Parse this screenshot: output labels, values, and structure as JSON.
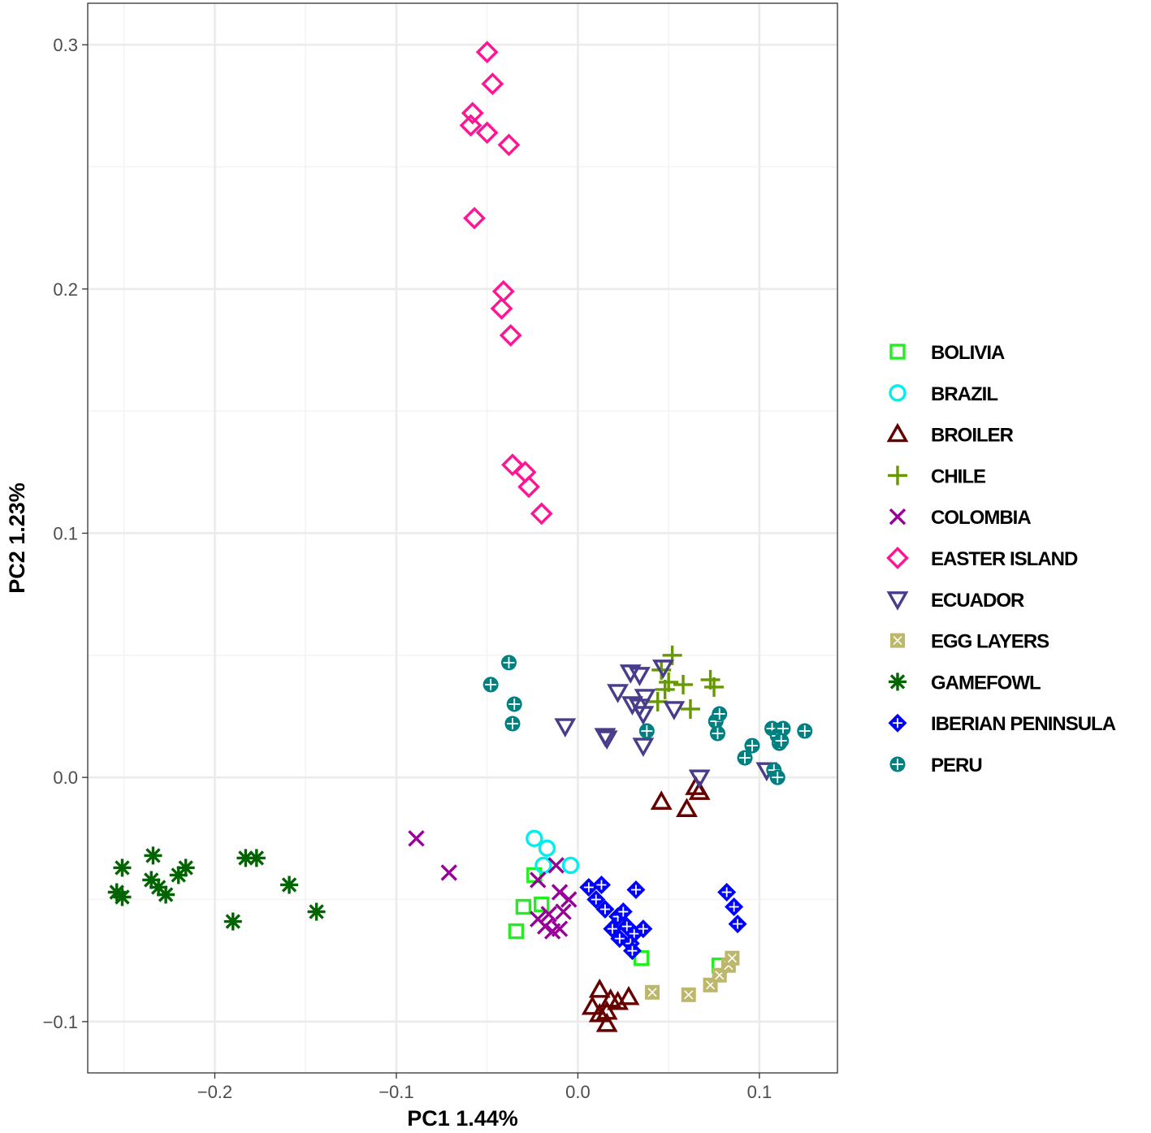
{
  "chart_data": {
    "type": "scatter",
    "xlabel": "PC1 1.44%",
    "ylabel": "PC2 1.23%",
    "xlim": [
      -0.27,
      0.143
    ],
    "ylim": [
      -0.121,
      0.317
    ],
    "x_ticks": [
      -0.2,
      -0.1,
      0.0,
      0.1
    ],
    "x_tick_labels": [
      "−0.2",
      "−0.1",
      "0.0",
      "0.1"
    ],
    "y_ticks": [
      -0.1,
      0.0,
      0.1,
      0.2,
      0.3
    ],
    "y_tick_labels": [
      "−0.1",
      "0.0",
      "0.1",
      "0.2",
      "0.3"
    ],
    "grid": true,
    "legend_position": "right",
    "series": [
      {
        "name": "BOLIVIA",
        "color": "#22ee22",
        "shape": "square",
        "points": [
          [
            -0.034,
            -0.063
          ],
          [
            -0.03,
            -0.053
          ],
          [
            -0.024,
            -0.04
          ],
          [
            -0.02,
            -0.052
          ],
          [
            0.035,
            -0.074
          ],
          [
            0.078,
            -0.077
          ]
        ]
      },
      {
        "name": "BRAZIL",
        "color": "#00eeee",
        "shape": "circle",
        "points": [
          [
            -0.024,
            -0.025
          ],
          [
            -0.017,
            -0.029
          ],
          [
            -0.019,
            -0.036
          ],
          [
            -0.004,
            -0.036
          ]
        ]
      },
      {
        "name": "BROILER",
        "color": "#660000",
        "shape": "triangle",
        "points": [
          [
            0.046,
            -0.01
          ],
          [
            0.06,
            -0.013
          ],
          [
            0.065,
            -0.004
          ],
          [
            0.067,
            -0.006
          ],
          [
            0.012,
            -0.087
          ],
          [
            0.008,
            -0.094
          ],
          [
            0.018,
            -0.091
          ],
          [
            0.028,
            -0.09
          ],
          [
            0.022,
            -0.092
          ],
          [
            0.012,
            -0.097
          ],
          [
            0.016,
            -0.101
          ],
          [
            0.016,
            -0.096
          ]
        ]
      },
      {
        "name": "CHILE",
        "color": "#669900",
        "shape": "plus",
        "points": [
          [
            0.052,
            0.05
          ],
          [
            0.046,
            0.044
          ],
          [
            0.05,
            0.039
          ],
          [
            0.058,
            0.038
          ],
          [
            0.048,
            0.036
          ],
          [
            0.073,
            0.04
          ],
          [
            0.075,
            0.037
          ],
          [
            0.044,
            0.031
          ],
          [
            0.062,
            0.028
          ]
        ]
      },
      {
        "name": "COLOMBIA",
        "color": "#990099",
        "shape": "cross",
        "points": [
          [
            -0.089,
            -0.025
          ],
          [
            -0.071,
            -0.039
          ],
          [
            -0.022,
            -0.042
          ],
          [
            -0.012,
            -0.036
          ],
          [
            -0.01,
            -0.047
          ],
          [
            -0.005,
            -0.05
          ],
          [
            -0.016,
            -0.056
          ],
          [
            -0.022,
            -0.058
          ],
          [
            -0.018,
            -0.061
          ],
          [
            -0.01,
            -0.062
          ],
          [
            -0.014,
            -0.063
          ],
          [
            -0.008,
            -0.055
          ]
        ]
      },
      {
        "name": "EASTER ISLAND",
        "color": "#ff1493",
        "shape": "diamond",
        "points": [
          [
            -0.05,
            0.297
          ],
          [
            -0.047,
            0.284
          ],
          [
            -0.058,
            0.272
          ],
          [
            -0.059,
            0.267
          ],
          [
            -0.05,
            0.264
          ],
          [
            -0.038,
            0.259
          ],
          [
            -0.057,
            0.229
          ],
          [
            -0.041,
            0.199
          ],
          [
            -0.042,
            0.192
          ],
          [
            -0.037,
            0.181
          ],
          [
            -0.036,
            0.128
          ],
          [
            -0.029,
            0.125
          ],
          [
            -0.027,
            0.119
          ],
          [
            -0.02,
            0.108
          ]
        ]
      },
      {
        "name": "ECUADOR",
        "color": "#483d8b",
        "shape": "triangle-down",
        "points": [
          [
            -0.007,
            0.021
          ],
          [
            0.015,
            0.017
          ],
          [
            0.016,
            0.016
          ],
          [
            0.022,
            0.035
          ],
          [
            0.029,
            0.043
          ],
          [
            0.034,
            0.042
          ],
          [
            0.047,
            0.045
          ],
          [
            0.037,
            0.033
          ],
          [
            0.03,
            0.03
          ],
          [
            0.034,
            0.029
          ],
          [
            0.036,
            0.026
          ],
          [
            0.053,
            0.028
          ],
          [
            0.036,
            0.013
          ],
          [
            0.067,
            -0.0
          ],
          [
            0.104,
            0.003
          ]
        ]
      },
      {
        "name": "EGG LAYERS",
        "color": "#bdb76b",
        "shape": "square-cross",
        "points": [
          [
            0.041,
            -0.088
          ],
          [
            0.061,
            -0.089
          ],
          [
            0.073,
            -0.085
          ],
          [
            0.078,
            -0.081
          ],
          [
            0.083,
            -0.077
          ],
          [
            0.085,
            -0.074
          ]
        ]
      },
      {
        "name": "GAMEFOWL",
        "color": "#006400",
        "shape": "asterisk",
        "points": [
          [
            -0.251,
            -0.037
          ],
          [
            -0.254,
            -0.047
          ],
          [
            -0.251,
            -0.049
          ],
          [
            -0.234,
            -0.032
          ],
          [
            -0.235,
            -0.042
          ],
          [
            -0.231,
            -0.045
          ],
          [
            -0.227,
            -0.048
          ],
          [
            -0.22,
            -0.04
          ],
          [
            -0.216,
            -0.037
          ],
          [
            -0.183,
            -0.033
          ],
          [
            -0.177,
            -0.033
          ],
          [
            -0.159,
            -0.044
          ],
          [
            -0.19,
            -0.059
          ],
          [
            -0.144,
            -0.055
          ]
        ]
      },
      {
        "name": "IBERIAN PENINSULA",
        "color": "#0000ff",
        "shape": "diamond-plus",
        "points": [
          [
            0.006,
            -0.045
          ],
          [
            0.013,
            -0.044
          ],
          [
            0.01,
            -0.05
          ],
          [
            0.015,
            -0.054
          ],
          [
            0.022,
            -0.057
          ],
          [
            0.025,
            -0.055
          ],
          [
            0.019,
            -0.062
          ],
          [
            0.027,
            -0.061
          ],
          [
            0.031,
            -0.064
          ],
          [
            0.036,
            -0.062
          ],
          [
            0.023,
            -0.066
          ],
          [
            0.029,
            -0.068
          ],
          [
            0.03,
            -0.071
          ],
          [
            0.032,
            -0.046
          ],
          [
            0.082,
            -0.047
          ],
          [
            0.086,
            -0.053
          ],
          [
            0.088,
            -0.06
          ]
        ]
      },
      {
        "name": "PERU",
        "color": "#008080",
        "shape": "circle-plus",
        "points": [
          [
            -0.038,
            0.047
          ],
          [
            -0.048,
            0.038
          ],
          [
            -0.035,
            0.03
          ],
          [
            -0.036,
            0.022
          ],
          [
            0.038,
            0.019
          ],
          [
            0.076,
            0.023
          ],
          [
            0.078,
            0.026
          ],
          [
            0.077,
            0.018
          ],
          [
            0.092,
            0.008
          ],
          [
            0.096,
            0.013
          ],
          [
            0.107,
            0.02
          ],
          [
            0.11,
            0.017
          ],
          [
            0.113,
            0.02
          ],
          [
            0.111,
            0.014
          ],
          [
            0.112,
            0.015
          ],
          [
            0.125,
            0.019
          ],
          [
            0.108,
            0.003
          ],
          [
            0.11,
            0.0
          ]
        ]
      }
    ]
  }
}
